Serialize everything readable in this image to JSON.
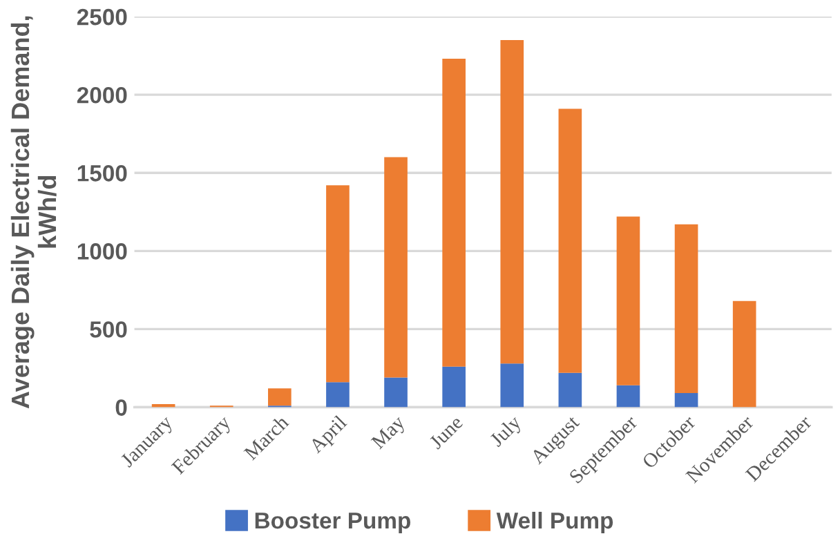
{
  "chart_data": {
    "type": "bar",
    "stacked": true,
    "categories": [
      "January",
      "February",
      "March",
      "April",
      "May",
      "June",
      "July",
      "August",
      "September",
      "October",
      "November",
      "December"
    ],
    "series": [
      {
        "name": "Booster Pump",
        "color": "#4472c4",
        "values": [
          0,
          0,
          10,
          160,
          190,
          260,
          280,
          220,
          140,
          90,
          0,
          0
        ]
      },
      {
        "name": "Well Pump",
        "color": "#ed7d31",
        "values": [
          20,
          10,
          110,
          1260,
          1410,
          1970,
          2070,
          1690,
          1080,
          1080,
          680,
          0
        ]
      }
    ],
    "ylabel": "Average Daily Electrical Demand,\nkWh/d",
    "ylim": [
      0,
      2500
    ],
    "yticks": [
      0,
      500,
      1000,
      1500,
      2000,
      2500
    ],
    "grid": "y",
    "legend": "bottom"
  }
}
